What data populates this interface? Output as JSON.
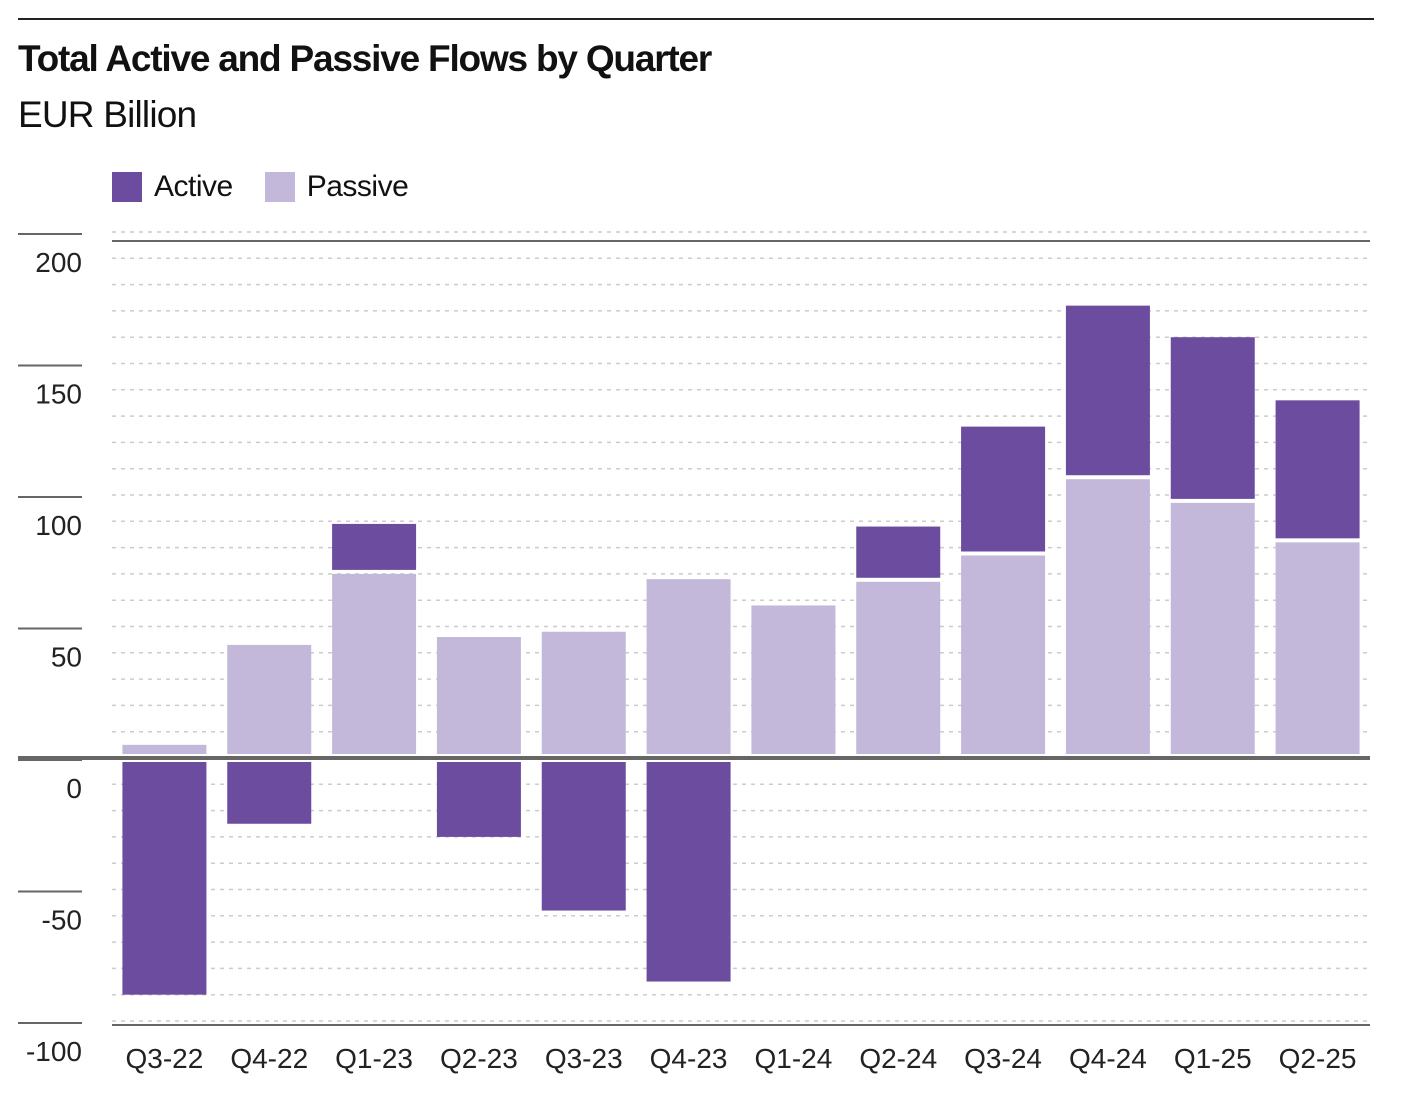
{
  "chart_data": {
    "type": "bar",
    "stacked": true,
    "title": "Total Active and Passive Flows by Quarter",
    "subtitle": "EUR Billion",
    "xlabel": "",
    "ylabel": "",
    "ylim": [
      -100,
      200
    ],
    "yticks": [
      -100,
      -50,
      0,
      50,
      100,
      150,
      200
    ],
    "ytick_labels": [
      "-100",
      "-50",
      "0",
      "50",
      "100",
      "150",
      "200"
    ],
    "grid": true,
    "legend_position": "top-left",
    "categories": [
      "Q3-22",
      "Q4-22",
      "Q1-23",
      "Q2-23",
      "Q3-23",
      "Q4-23",
      "Q1-24",
      "Q2-24",
      "Q3-24",
      "Q4-24",
      "Q1-25",
      "Q2-25"
    ],
    "series": [
      {
        "name": "Active",
        "color": "#6b4c9e",
        "values": [
          -90,
          -25,
          19,
          -30,
          -58,
          -85,
          0,
          21,
          49,
          66,
          63,
          54
        ]
      },
      {
        "name": "Passive",
        "color": "#c3b8da",
        "values": [
          5,
          43,
          70,
          46,
          48,
          68,
          58,
          67,
          77,
          106,
          97,
          82
        ]
      }
    ]
  }
}
